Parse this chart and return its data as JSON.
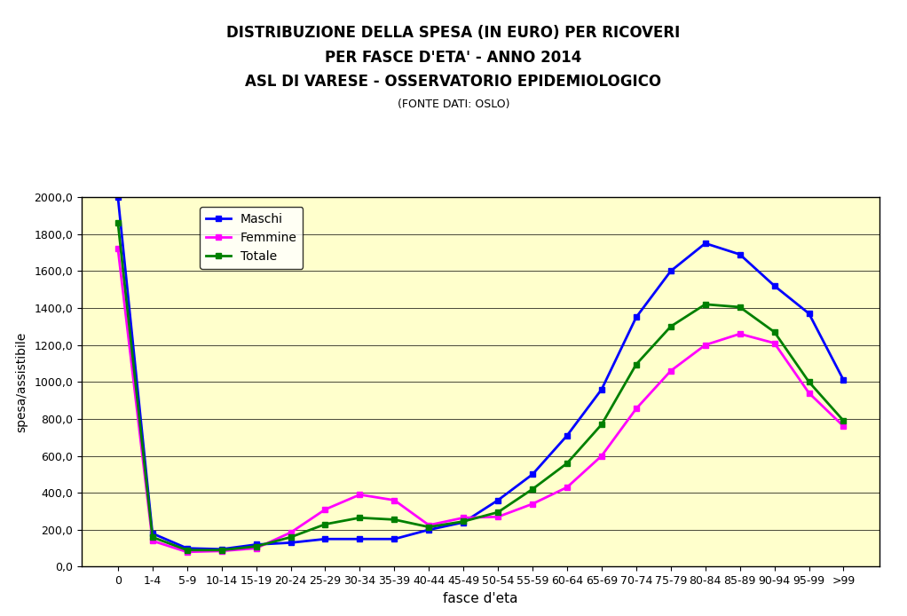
{
  "title_line1": "DISTRIBUZIONE DELLA SPESA (IN EURO) PER RICOVERI",
  "title_line2": "PER FASCE D'ETA' - ANNO 2014",
  "title_line3": "ASL DI VARESE - OSSERVATORIO EPIDEMIOLOGICO",
  "title_line4": "(FONTE DATI: OSLO)",
  "xlabel": "fasce d'eta",
  "ylabel": "spesa/assistibile",
  "categories": [
    "0",
    "1-4",
    "5-9",
    "10-14",
    "15-19",
    "20-24",
    "25-29",
    "30-34",
    "35-39",
    "40-44",
    "45-49",
    "50-54",
    "55-59",
    "60-64",
    "65-69",
    "70-74",
    "75-79",
    "80-84",
    "85-89",
    "90-94",
    "95-99",
    ">99"
  ],
  "maschi": [
    2000,
    180,
    100,
    95,
    120,
    130,
    150,
    150,
    150,
    200,
    240,
    360,
    500,
    710,
    960,
    1350,
    1600,
    1750,
    1690,
    1520,
    1370,
    1010
  ],
  "femmine": [
    1720,
    140,
    80,
    85,
    100,
    185,
    310,
    390,
    360,
    225,
    265,
    270,
    340,
    430,
    600,
    855,
    1060,
    1200,
    1260,
    1210,
    940,
    760
  ],
  "totale": [
    1860,
    160,
    90,
    90,
    110,
    160,
    230,
    265,
    255,
    215,
    245,
    295,
    420,
    560,
    770,
    1095,
    1300,
    1420,
    1405,
    1270,
    1000,
    790
  ],
  "maschi_color": "#0000FF",
  "femmine_color": "#FF00FF",
  "totale_color": "#008000",
  "ylim": [
    0,
    2000
  ],
  "yticks": [
    0,
    200,
    400,
    600,
    800,
    1000,
    1200,
    1400,
    1600,
    1800,
    2000
  ],
  "ytick_labels": [
    "0,0",
    "200,0",
    "400,0",
    "600,0",
    "800,0",
    "1000,0",
    "1200,0",
    "1400,0",
    "1600,0",
    "1800,0",
    "2000,0"
  ],
  "bg_color": "#FFFFCC",
  "outer_bg_color": "#FFFFFF",
  "marker": "s",
  "linewidth": 2.0,
  "markersize": 5,
  "title_fontsize": 12,
  "subtitle_fontsize": 9
}
